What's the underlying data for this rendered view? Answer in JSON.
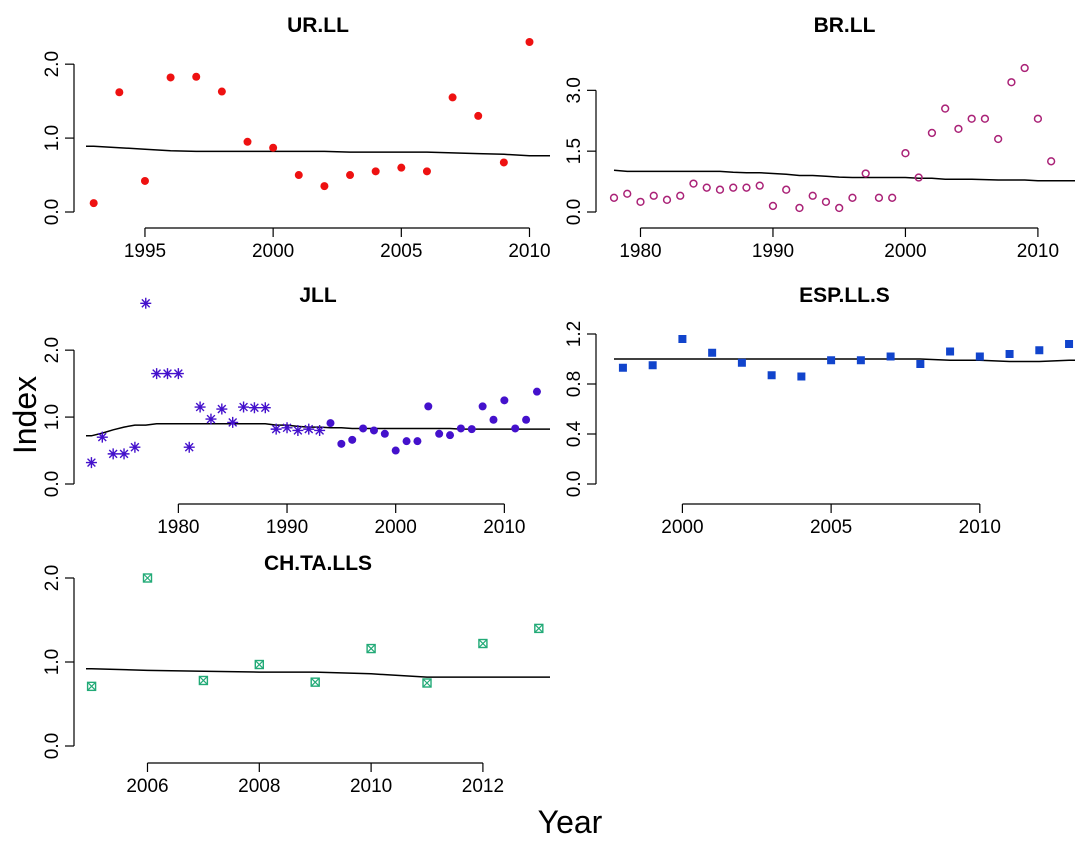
{
  "xlabel": "Year",
  "ylabel": "Index",
  "chart_data": [
    {
      "type": "scatter",
      "title": "UR.LL",
      "marker": "filled-circle",
      "color": "#ee1111",
      "x": [
        1993,
        1994,
        1995,
        1996,
        1997,
        1998,
        1999,
        2000,
        2001,
        2002,
        2003,
        2004,
        2005,
        2006,
        2007,
        2008,
        2009,
        2010
      ],
      "values": [
        0.12,
        1.62,
        0.42,
        1.82,
        1.83,
        1.63,
        0.95,
        0.87,
        0.5,
        0.35,
        0.5,
        0.55,
        0.6,
        0.55,
        1.55,
        1.3,
        0.67,
        2.3
      ],
      "fit": [
        0.89,
        0.87,
        0.85,
        0.83,
        0.82,
        0.82,
        0.82,
        0.82,
        0.82,
        0.82,
        0.81,
        0.81,
        0.81,
        0.81,
        0.8,
        0.79,
        0.78,
        0.76
      ],
      "xlim": [
        1992.7,
        2010.8
      ],
      "ylim": [
        0.0,
        2.3
      ],
      "xticks": [
        1995,
        2000,
        2005,
        2010
      ],
      "yticks": [
        0.0,
        1.0,
        2.0
      ],
      "ytick_labels": [
        "0.0",
        "1.0",
        "2.0"
      ]
    },
    {
      "type": "scatter",
      "title": "BR.LL",
      "marker": "open-circle",
      "color": "#aa2277",
      "x": [
        1978,
        1979,
        1980,
        1981,
        1982,
        1983,
        1984,
        1985,
        1986,
        1987,
        1988,
        1989,
        1990,
        1991,
        1992,
        1993,
        1994,
        1995,
        1996,
        1997,
        1998,
        1999,
        2000,
        2001,
        2002,
        2003,
        2004,
        2005,
        2006,
        2007,
        2008,
        2009,
        2010,
        2011,
        2012
      ],
      "values": [
        0.35,
        0.45,
        0.25,
        0.4,
        0.3,
        0.4,
        0.7,
        0.6,
        0.55,
        0.6,
        0.6,
        0.65,
        0.15,
        0.55,
        0.1,
        0.4,
        0.25,
        0.1,
        0.35,
        0.95,
        0.35,
        0.35,
        1.45,
        0.85,
        1.95,
        2.55,
        2.05,
        2.3,
        2.3,
        1.8,
        3.2,
        3.55,
        2.3,
        1.25,
        null
      ],
      "fit": [
        1.03,
        1.0,
        1.0,
        1.0,
        1.0,
        1.0,
        1.0,
        1.0,
        1.0,
        0.98,
        0.97,
        0.97,
        0.95,
        0.93,
        0.9,
        0.9,
        0.88,
        0.86,
        0.85,
        0.85,
        0.85,
        0.85,
        0.85,
        0.83,
        0.83,
        0.81,
        0.81,
        0.81,
        0.8,
        0.79,
        0.79,
        0.79,
        0.77,
        0.77,
        0.77
      ],
      "xlim": [
        1978,
        2012.8
      ],
      "ylim": [
        0.0,
        3.6
      ],
      "xticks": [
        1980,
        1990,
        2000,
        2010
      ],
      "yticks": [
        0.0,
        1.5,
        3.0
      ],
      "ytick_labels": [
        "0.0",
        "1.5",
        "3.0"
      ]
    },
    {
      "type": "scatter",
      "title": "JLL",
      "marker": "asterisk-then-dot",
      "color": "#4411cc",
      "x": [
        1972,
        1973,
        1974,
        1975,
        1976,
        1977,
        1978,
        1979,
        1980,
        1981,
        1982,
        1983,
        1984,
        1985,
        1986,
        1987,
        1988,
        1989,
        1990,
        1991,
        1992,
        1993,
        1994,
        1995,
        1996,
        1997,
        1998,
        1999,
        2000,
        2001,
        2002,
        2003,
        2004,
        2005,
        2006,
        2007,
        2008,
        2009,
        2010,
        2011,
        2012,
        2013
      ],
      "values": [
        0.32,
        0.7,
        0.45,
        0.45,
        0.55,
        2.7,
        1.65,
        1.65,
        1.65,
        0.55,
        1.15,
        0.97,
        1.12,
        0.92,
        1.15,
        1.14,
        1.14,
        0.82,
        0.84,
        0.8,
        0.82,
        0.8,
        0.91,
        0.6,
        0.66,
        0.83,
        0.8,
        0.75,
        0.5,
        0.64,
        0.64,
        1.16,
        0.75,
        0.73,
        0.83,
        0.82,
        1.16,
        0.96,
        1.25,
        0.83,
        0.96,
        1.38
      ],
      "fit": [
        0.72,
        0.76,
        0.81,
        0.85,
        0.88,
        0.88,
        0.9,
        0.9,
        0.9,
        0.9,
        0.9,
        0.9,
        0.9,
        0.9,
        0.9,
        0.9,
        0.9,
        0.88,
        0.88,
        0.86,
        0.85,
        0.85,
        0.84,
        0.84,
        0.83,
        0.83,
        0.83,
        0.83,
        0.83,
        0.83,
        0.83,
        0.83,
        0.83,
        0.83,
        0.82,
        0.82,
        0.82,
        0.82,
        0.82,
        0.82,
        0.82,
        0.82
      ],
      "xlim": [
        1971.5,
        2014.2
      ],
      "ylim": [
        0.0,
        2.6
      ],
      "xticks": [
        1980,
        1990,
        2000,
        2010
      ],
      "yticks": [
        0.0,
        1.0,
        2.0
      ],
      "ytick_labels": [
        "0.0",
        "1.0",
        "2.0"
      ]
    },
    {
      "type": "scatter",
      "title": "ESP.LL.S",
      "marker": "filled-square",
      "color": "#1144cc",
      "x": [
        1998,
        1999,
        2000,
        2001,
        2002,
        2003,
        2004,
        2005,
        2006,
        2007,
        2008,
        2009,
        2010,
        2011,
        2012,
        2013
      ],
      "values": [
        0.93,
        0.95,
        1.16,
        1.05,
        0.97,
        0.87,
        0.86,
        0.99,
        0.99,
        1.02,
        0.96,
        1.06,
        1.02,
        1.04,
        1.07,
        1.12
      ],
      "fit": [
        1.0,
        1.0,
        1.0,
        1.0,
        1.0,
        1.0,
        1.0,
        1.0,
        1.0,
        1.0,
        1.0,
        0.99,
        0.99,
        0.98,
        0.98,
        0.99
      ],
      "xlim": [
        1997.7,
        2013.2
      ],
      "ylim": [
        0.0,
        1.2
      ],
      "xticks": [
        2000,
        2005,
        2010
      ],
      "yticks": [
        0.0,
        0.4,
        0.8,
        1.2
      ],
      "ytick_labels": [
        "0.0",
        "0.4",
        "0.8",
        "1.2"
      ]
    },
    {
      "type": "scatter",
      "title": "CH.TA.LLS",
      "marker": "boxed-x",
      "color": "#22aa77",
      "x": [
        2005,
        2006,
        2007,
        2008,
        2009,
        2010,
        2011,
        2012,
        2013
      ],
      "values": [
        0.71,
        2.0,
        0.78,
        0.97,
        0.76,
        1.16,
        0.75,
        1.22,
        1.4
      ],
      "fit": [
        0.92,
        0.9,
        0.89,
        0.88,
        0.88,
        0.86,
        0.82,
        0.82,
        0.82
      ],
      "xlim": [
        2004.9,
        2013.2
      ],
      "ylim": [
        0.0,
        2.0
      ],
      "xticks": [
        2006,
        2008,
        2010,
        2012
      ],
      "yticks": [
        0.0,
        1.0,
        2.0
      ],
      "ytick_labels": [
        "0.0",
        "1.0",
        "2.0"
      ]
    }
  ]
}
